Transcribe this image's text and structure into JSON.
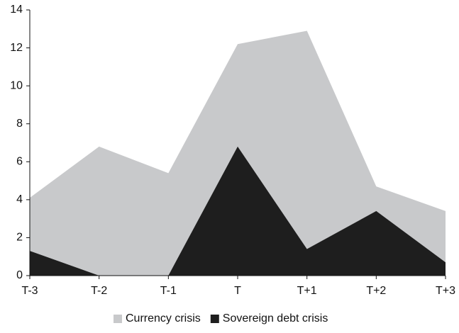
{
  "chart_data": {
    "type": "area",
    "categories": [
      "T-3",
      "T-2",
      "T-1",
      "T",
      "T+1",
      "T+2",
      "T+3"
    ],
    "series": [
      {
        "name": "Currency crisis",
        "color": "#c8c9cb",
        "values": [
          4.1,
          6.8,
          5.4,
          12.2,
          12.9,
          4.7,
          3.4
        ]
      },
      {
        "name": "Sovereign debt crisis",
        "color": "#1e1e1e",
        "values": [
          1.3,
          0,
          0,
          6.8,
          1.4,
          3.4,
          0.7
        ]
      }
    ],
    "ylim": [
      0,
      14
    ],
    "yticks": [
      0,
      2,
      4,
      6,
      8,
      10,
      12,
      14
    ],
    "legend": "bottom"
  }
}
